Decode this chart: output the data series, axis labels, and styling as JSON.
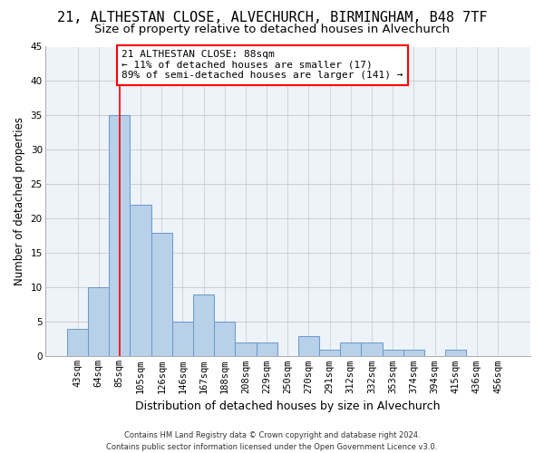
{
  "title": "21, ALTHESTAN CLOSE, ALVECHURCH, BIRMINGHAM, B48 7TF",
  "subtitle": "Size of property relative to detached houses in Alvechurch",
  "xlabel": "Distribution of detached houses by size in Alvechurch",
  "ylabel": "Number of detached properties",
  "bar_color": "#b8d0e8",
  "bar_edge_color": "#6699cc",
  "background_color": "#eef2f9",
  "grid_color": "#c8c8c8",
  "categories": [
    "43sqm",
    "64sqm",
    "85sqm",
    "105sqm",
    "126sqm",
    "146sqm",
    "167sqm",
    "188sqm",
    "208sqm",
    "229sqm",
    "250sqm",
    "270sqm",
    "291sqm",
    "312sqm",
    "332sqm",
    "353sqm",
    "374sqm",
    "394sqm",
    "415sqm",
    "436sqm",
    "456sqm"
  ],
  "values": [
    4,
    10,
    35,
    22,
    18,
    5,
    9,
    5,
    2,
    2,
    0,
    3,
    1,
    2,
    2,
    1,
    1,
    0,
    1,
    0,
    0
  ],
  "ylim": [
    0,
    45
  ],
  "yticks": [
    0,
    5,
    10,
    15,
    20,
    25,
    30,
    35,
    40,
    45
  ],
  "annotation_text": "21 ALTHESTAN CLOSE: 88sqm\n← 11% of detached houses are smaller (17)\n89% of semi-detached houses are larger (141) →",
  "annotation_box_color": "white",
  "annotation_box_edgecolor": "red",
  "footer_text": "Contains HM Land Registry data © Crown copyright and database right 2024.\nContains public sector information licensed under the Open Government Licence v3.0.",
  "title_fontsize": 11,
  "subtitle_fontsize": 9.5,
  "xlabel_fontsize": 9,
  "ylabel_fontsize": 8.5,
  "tick_fontsize": 7.5,
  "annotation_fontsize": 8,
  "footer_fontsize": 6
}
